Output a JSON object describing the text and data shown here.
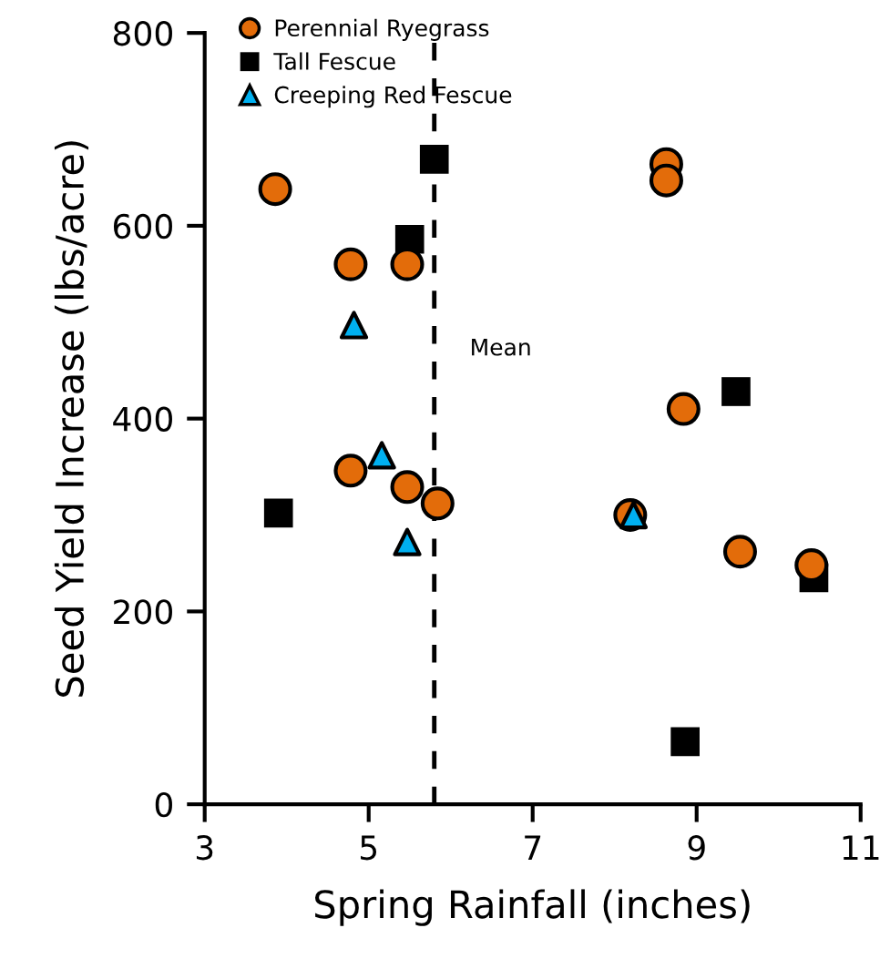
{
  "chart_data": {
    "type": "scatter",
    "xlabel": "Spring Rainfall (inches)",
    "ylabel": "Seed Yield Increase (lbs/acre)",
    "xlim": [
      3,
      11
    ],
    "xticks": [
      3,
      5,
      7,
      9,
      11
    ],
    "ylim": [
      0,
      800
    ],
    "yticks": [
      0,
      200,
      400,
      600,
      800
    ],
    "grid": false,
    "legend": "top left",
    "series": [
      {
        "name": "Perennial Ryegrass",
        "color": "#e36c0a",
        "marker": "circle",
        "x": [
          3.86,
          4.78,
          5.47,
          4.78,
          5.47,
          5.84,
          8.63,
          8.63,
          8.84,
          8.19,
          9.53,
          10.4
        ],
        "values": [
          638,
          560,
          560,
          346,
          329,
          312,
          664,
          647,
          410,
          300,
          262,
          248
        ]
      },
      {
        "name": "Tall Fescue",
        "color": "#000000",
        "marker": "square",
        "x": [
          5.8,
          5.5,
          3.9,
          9.48,
          8.86,
          10.43
        ],
        "values": [
          669,
          586,
          302,
          428,
          65,
          235
        ]
      },
      {
        "name": "Creeping Red Fescue",
        "color": "#00b0f0",
        "marker": "triangle",
        "x": [
          4.82,
          5.16,
          5.47,
          8.23
        ],
        "values": [
          497,
          362,
          272,
          300
        ]
      }
    ],
    "ref_lines": [
      {
        "axis": "x",
        "value": 5.8,
        "label": "Mean",
        "color": "#000000",
        "line_style": "dashed"
      }
    ]
  }
}
